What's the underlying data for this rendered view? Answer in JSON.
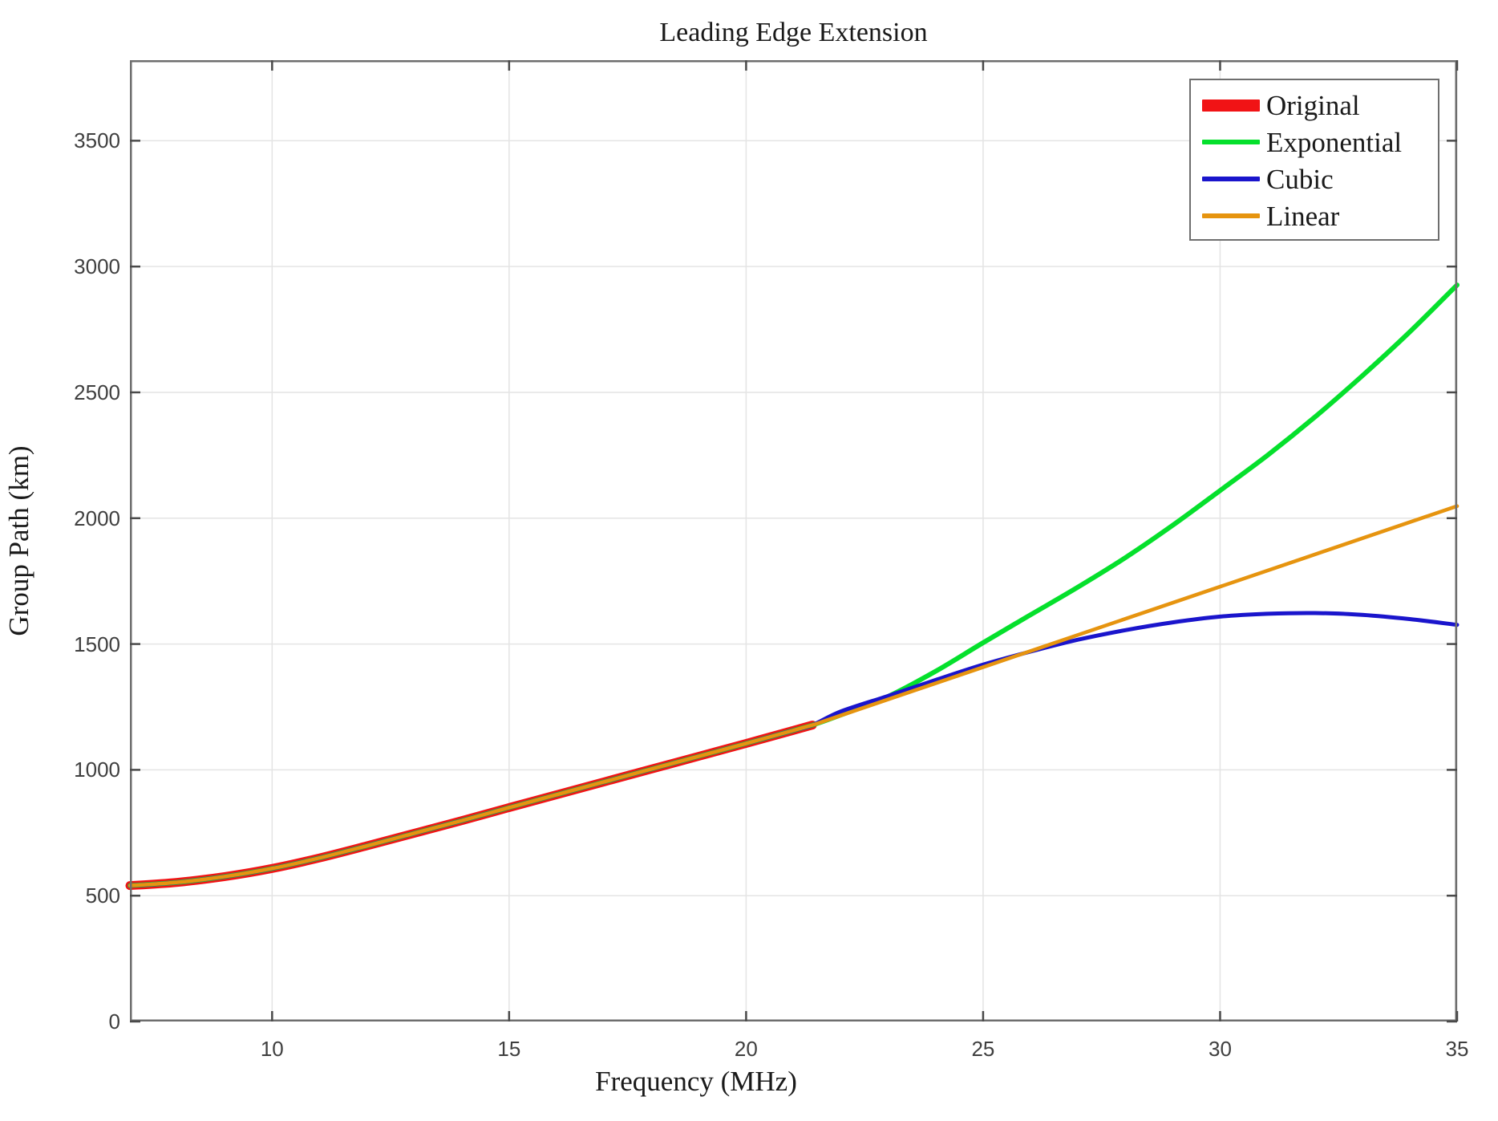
{
  "figure": {
    "background": "#ffffff"
  },
  "chart_data": {
    "type": "line",
    "title": "Leading Edge Extension",
    "xlabel": "Frequency (MHz)",
    "ylabel": "Group Path (km)",
    "xlim": [
      7,
      35
    ],
    "ylim": [
      0,
      3820
    ],
    "xticks": [
      10,
      15,
      20,
      25,
      30,
      35
    ],
    "yticks": [
      0,
      500,
      1000,
      1500,
      2000,
      2500,
      3000,
      3500
    ],
    "grid": true,
    "legend_position": "top-right",
    "axis_color": "#6e6e6e",
    "grid_color": "#e4e4e4",
    "tick_label_color": "#3f3f3f",
    "series": [
      {
        "name": "Original",
        "color": "#f11315",
        "line_width": 11,
        "legend_swatch_height": 15,
        "x": [
          7,
          8,
          9,
          10,
          11,
          12,
          13,
          14,
          15,
          16,
          17,
          18,
          19,
          20,
          21,
          21.4
        ],
        "y": [
          540,
          553,
          576,
          608,
          650,
          698,
          748,
          798,
          850,
          901,
          952,
          1003,
          1054,
          1105,
          1157,
          1178
        ]
      },
      {
        "name": "Exponential",
        "color": "#05e02c",
        "line_width": 6,
        "legend_swatch_height": 6,
        "x": [
          7,
          8,
          9,
          10,
          11,
          12,
          13,
          14,
          15,
          16,
          17,
          18,
          19,
          20,
          21,
          21.4,
          22,
          23,
          24,
          25,
          26,
          27,
          28,
          29,
          30,
          31,
          32,
          33,
          34,
          35
        ],
        "y": [
          540,
          553,
          576,
          608,
          650,
          698,
          748,
          798,
          850,
          901,
          952,
          1003,
          1054,
          1105,
          1157,
          1178,
          1218,
          1292,
          1392,
          1505,
          1616,
          1726,
          1843,
          1972,
          2110,
          2250,
          2402,
          2566,
          2740,
          2927
        ]
      },
      {
        "name": "Cubic",
        "color": "#1a15cc",
        "line_width": 5,
        "legend_swatch_height": 6,
        "x": [
          7,
          8,
          9,
          10,
          11,
          12,
          13,
          14,
          15,
          16,
          17,
          18,
          19,
          20,
          21,
          21.4,
          22,
          23,
          24,
          25,
          26,
          27,
          28,
          29,
          30,
          31,
          32,
          33,
          34,
          35
        ],
        "y": [
          540,
          553,
          576,
          608,
          650,
          698,
          748,
          798,
          850,
          901,
          952,
          1003,
          1054,
          1105,
          1157,
          1178,
          1232,
          1294,
          1357,
          1418,
          1470,
          1517,
          1555,
          1586,
          1609,
          1620,
          1623,
          1616,
          1599,
          1576
        ]
      },
      {
        "name": "Linear",
        "color": "#e6940f",
        "line_width": 4.6,
        "legend_swatch_height": 6,
        "x": [
          7,
          8,
          9,
          10,
          11,
          12,
          13,
          14,
          15,
          16,
          17,
          18,
          19,
          20,
          21,
          21.4,
          22,
          25,
          30,
          35
        ],
        "y": [
          540,
          553,
          576,
          608,
          650,
          698,
          748,
          798,
          850,
          901,
          952,
          1003,
          1054,
          1105,
          1157,
          1178,
          1216,
          1408,
          1728,
          2048
        ]
      }
    ]
  }
}
